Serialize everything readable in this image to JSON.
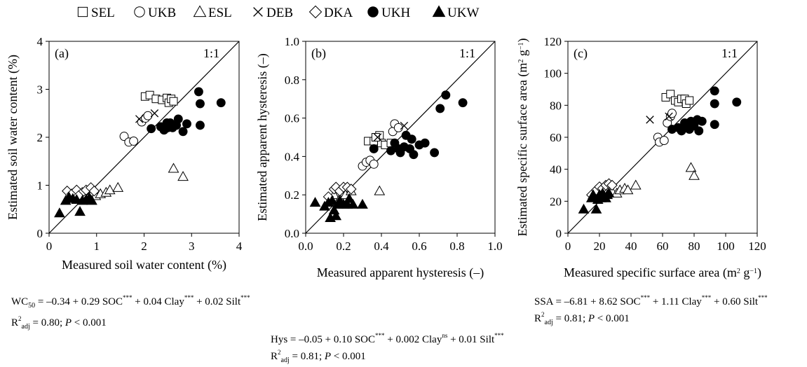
{
  "legend": [
    {
      "label": "SEL",
      "marker": "square-open"
    },
    {
      "label": "UKB",
      "marker": "circle-open"
    },
    {
      "label": "ESL",
      "marker": "triangle-open"
    },
    {
      "label": "DEB",
      "marker": "cross"
    },
    {
      "label": "DKA",
      "marker": "diamond-open"
    },
    {
      "label": "UKH",
      "marker": "circle-filled"
    },
    {
      "label": "UKW",
      "marker": "triangle-filled"
    }
  ],
  "colors": {
    "ink": "#000000",
    "fill_open": "#ffffff",
    "fill_solid": "#000000",
    "background": "#ffffff"
  },
  "chart_data": [
    {
      "type": "scatter",
      "panel_label": "(a)",
      "reference_label": "1:1",
      "xlabel": "Measured soil water content (%)",
      "ylabel": "Estimated soil water content (%)",
      "xlim": [
        0,
        4
      ],
      "ylim": [
        0,
        4
      ],
      "xticks": [
        "0",
        "1",
        "2",
        "3",
        "4"
      ],
      "yticks": [
        "0",
        "1",
        "2",
        "3",
        "4"
      ],
      "series": [
        {
          "name": "SEL",
          "points": [
            [
              2.02,
              2.85
            ],
            [
              2.12,
              2.88
            ],
            [
              2.25,
              2.8
            ],
            [
              2.38,
              2.78
            ],
            [
              2.48,
              2.82
            ],
            [
              2.52,
              2.72
            ],
            [
              2.57,
              2.8
            ],
            [
              2.62,
              2.75
            ]
          ]
        },
        {
          "name": "UKB",
          "points": [
            [
              1.58,
              2.02
            ],
            [
              1.68,
              1.9
            ],
            [
              1.78,
              1.92
            ],
            [
              1.95,
              2.32
            ],
            [
              2.03,
              2.4
            ],
            [
              2.08,
              2.45
            ]
          ]
        },
        {
          "name": "ESL",
          "points": [
            [
              0.85,
              0.72
            ],
            [
              0.98,
              0.78
            ],
            [
              1.08,
              0.82
            ],
            [
              1.2,
              0.85
            ],
            [
              1.28,
              0.9
            ],
            [
              1.45,
              0.95
            ],
            [
              2.62,
              1.35
            ],
            [
              2.82,
              1.18
            ]
          ]
        },
        {
          "name": "DEB",
          "points": [
            [
              1.9,
              2.38
            ],
            [
              2.22,
              2.5
            ]
          ]
        },
        {
          "name": "DKA",
          "points": [
            [
              0.38,
              0.88
            ],
            [
              0.48,
              0.82
            ],
            [
              0.58,
              0.9
            ],
            [
              0.7,
              0.85
            ],
            [
              0.78,
              0.9
            ],
            [
              0.88,
              0.95
            ],
            [
              0.95,
              0.88
            ],
            [
              0.62,
              0.78
            ]
          ]
        },
        {
          "name": "UKH",
          "points": [
            [
              2.15,
              2.18
            ],
            [
              2.35,
              2.22
            ],
            [
              2.42,
              2.15
            ],
            [
              2.5,
              2.2
            ],
            [
              2.55,
              2.3
            ],
            [
              2.6,
              2.2
            ],
            [
              2.68,
              2.25
            ],
            [
              2.72,
              2.38
            ],
            [
              2.82,
              2.12
            ],
            [
              2.9,
              2.28
            ],
            [
              3.15,
              2.95
            ],
            [
              3.18,
              2.7
            ],
            [
              3.18,
              2.25
            ],
            [
              3.62,
              2.72
            ],
            [
              2.48,
              2.3
            ]
          ]
        },
        {
          "name": "UKW",
          "points": [
            [
              0.22,
              0.42
            ],
            [
              0.35,
              0.68
            ],
            [
              0.42,
              0.75
            ],
            [
              0.5,
              0.72
            ],
            [
              0.58,
              0.7
            ],
            [
              0.65,
              0.45
            ],
            [
              0.7,
              0.68
            ],
            [
              0.78,
              0.7
            ],
            [
              0.85,
              0.74
            ],
            [
              0.9,
              0.68
            ]
          ]
        }
      ]
    },
    {
      "type": "scatter",
      "panel_label": "(b)",
      "reference_label": "1:1",
      "xlabel": "Measured apparent hysteresis (–)",
      "ylabel": "Estimated apparent hysteresis (–)",
      "xlim": [
        0,
        1
      ],
      "ylim": [
        0,
        1
      ],
      "xticks": [
        "0.0",
        "0.2",
        "0.4",
        "0.6",
        "0.8",
        "1.0"
      ],
      "yticks": [
        "0.0",
        "0.2",
        "0.4",
        "0.6",
        "0.8",
        "1.0"
      ],
      "series": [
        {
          "name": "SEL",
          "points": [
            [
              0.33,
              0.48
            ],
            [
              0.36,
              0.48
            ],
            [
              0.39,
              0.51
            ],
            [
              0.4,
              0.47
            ],
            [
              0.42,
              0.46
            ],
            [
              0.45,
              0.47
            ],
            [
              0.37,
              0.5
            ]
          ]
        },
        {
          "name": "UKB",
          "points": [
            [
              0.3,
              0.35
            ],
            [
              0.32,
              0.37
            ],
            [
              0.34,
              0.38
            ],
            [
              0.36,
              0.36
            ],
            [
              0.46,
              0.53
            ],
            [
              0.47,
              0.57
            ],
            [
              0.49,
              0.55
            ]
          ]
        },
        {
          "name": "ESL",
          "points": [
            [
              0.15,
              0.2
            ],
            [
              0.18,
              0.18
            ],
            [
              0.21,
              0.2
            ],
            [
              0.24,
              0.22
            ],
            [
              0.39,
              0.22
            ]
          ]
        },
        {
          "name": "DEB",
          "points": [
            [
              0.38,
              0.5
            ],
            [
              0.52,
              0.56
            ]
          ]
        },
        {
          "name": "DKA",
          "points": [
            [
              0.12,
              0.19
            ],
            [
              0.15,
              0.23
            ],
            [
              0.16,
              0.24
            ],
            [
              0.18,
              0.22
            ],
            [
              0.2,
              0.24
            ],
            [
              0.22,
              0.24
            ],
            [
              0.24,
              0.23
            ]
          ]
        },
        {
          "name": "UKH",
          "points": [
            [
              0.36,
              0.44
            ],
            [
              0.45,
              0.43
            ],
            [
              0.47,
              0.47
            ],
            [
              0.49,
              0.44
            ],
            [
              0.5,
              0.42
            ],
            [
              0.52,
              0.45
            ],
            [
              0.53,
              0.51
            ],
            [
              0.55,
              0.44
            ],
            [
              0.56,
              0.49
            ],
            [
              0.57,
              0.41
            ],
            [
              0.6,
              0.46
            ],
            [
              0.63,
              0.47
            ],
            [
              0.68,
              0.42
            ],
            [
              0.71,
              0.65
            ],
            [
              0.74,
              0.72
            ],
            [
              0.83,
              0.68
            ]
          ]
        },
        {
          "name": "UKW",
          "points": [
            [
              0.05,
              0.16
            ],
            [
              0.1,
              0.14
            ],
            [
              0.12,
              0.16
            ],
            [
              0.13,
              0.08
            ],
            [
              0.15,
              0.12
            ],
            [
              0.16,
              0.09
            ],
            [
              0.17,
              0.15
            ],
            [
              0.18,
              0.17
            ],
            [
              0.2,
              0.15
            ],
            [
              0.22,
              0.15
            ],
            [
              0.23,
              0.18
            ],
            [
              0.25,
              0.15
            ],
            [
              0.3,
              0.15
            ],
            [
              0.14,
              0.17
            ]
          ]
        }
      ]
    },
    {
      "type": "scatter",
      "panel_label": "(c)",
      "reference_label": "1:1",
      "xlabel": "Measured specific surface area (m² g⁻¹)",
      "ylabel": "Estimated specific surface area (m² g⁻¹)",
      "xlim": [
        0,
        120
      ],
      "ylim": [
        0,
        120
      ],
      "xticks": [
        "0",
        "20",
        "40",
        "60",
        "80",
        "100",
        "120"
      ],
      "yticks": [
        "0",
        "20",
        "40",
        "60",
        "80",
        "100",
        "120"
      ],
      "series": [
        {
          "name": "SEL",
          "points": [
            [
              62,
              85
            ],
            [
              65,
              87
            ],
            [
              68,
              83
            ],
            [
              70,
              82
            ],
            [
              72,
              84
            ],
            [
              74,
              84
            ],
            [
              75,
              81
            ],
            [
              77,
              83
            ]
          ]
        },
        {
          "name": "UKB",
          "points": [
            [
              57,
              60
            ],
            [
              58,
              57
            ],
            [
              61,
              58
            ],
            [
              63,
              69
            ],
            [
              65,
              73
            ],
            [
              66,
              75
            ]
          ]
        },
        {
          "name": "ESL",
          "points": [
            [
              28,
              26
            ],
            [
              31,
              25
            ],
            [
              33,
              27
            ],
            [
              36,
              28
            ],
            [
              38,
              27
            ],
            [
              43,
              30
            ],
            [
              78,
              41
            ],
            [
              80,
              36
            ]
          ]
        },
        {
          "name": "DEB",
          "points": [
            [
              52,
              71
            ],
            [
              64,
              73
            ]
          ]
        },
        {
          "name": "DKA",
          "points": [
            [
              15,
              24
            ],
            [
              18,
              27
            ],
            [
              20,
              29
            ],
            [
              22,
              28
            ],
            [
              24,
              30
            ],
            [
              26,
              31
            ],
            [
              28,
              30
            ]
          ]
        },
        {
          "name": "UKH",
          "points": [
            [
              66,
              65
            ],
            [
              70,
              66
            ],
            [
              72,
              64
            ],
            [
              74,
              69
            ],
            [
              75,
              66
            ],
            [
              77,
              65
            ],
            [
              78,
              70
            ],
            [
              80,
              68
            ],
            [
              82,
              71
            ],
            [
              83,
              64
            ],
            [
              85,
              70
            ],
            [
              93,
              68
            ],
            [
              93,
              81
            ],
            [
              93,
              89
            ],
            [
              107,
              82
            ],
            [
              79,
              67
            ]
          ]
        },
        {
          "name": "UKW",
          "points": [
            [
              10,
              15
            ],
            [
              15,
              22
            ],
            [
              16,
              24
            ],
            [
              18,
              15
            ],
            [
              19,
              21
            ],
            [
              20,
              24
            ],
            [
              21,
              22
            ],
            [
              22,
              25
            ],
            [
              23,
              23
            ],
            [
              24,
              22
            ],
            [
              25,
              24
            ],
            [
              26,
              25
            ]
          ]
        }
      ]
    }
  ],
  "equations": {
    "wc": {
      "lhs": "WC",
      "lhs_sub": "50",
      "body": " = –0.34 + 0.29 SOC",
      "s1": "***",
      "t1": " + 0.04 Clay",
      "s2": "***",
      "t2": " + 0.02 Silt",
      "s3": "***",
      "r2": "R",
      "r2_sup": "2",
      "r2_sub": "adj",
      "stat": " = 0.80; ",
      "p": "P",
      "p_val": " < 0.001"
    },
    "hys": {
      "lhs": "Hys",
      "body": " = –0.05 + 0.10 SOC",
      "s1": "***",
      "t1": " + 0.002 Clay",
      "s2": "ns",
      "t2": " + 0.01 Silt",
      "s3": "***",
      "r2": "R",
      "r2_sup": "2",
      "r2_sub": "adj",
      "stat": " = 0.81; ",
      "p": "P",
      "p_val": " < 0.001"
    },
    "ssa": {
      "lhs": "SSA",
      "body": " = –6.81 + 8.62 SOC",
      "s1": "***",
      "t1": " + 1.11 Clay",
      "s2": "***",
      "t2": " + 0.60 Silt",
      "s3": "***",
      "r2": "R",
      "r2_sup": "2",
      "r2_sub": "adj",
      "stat": " = 0.81; ",
      "p": "P",
      "p_val": " < 0.001"
    }
  }
}
